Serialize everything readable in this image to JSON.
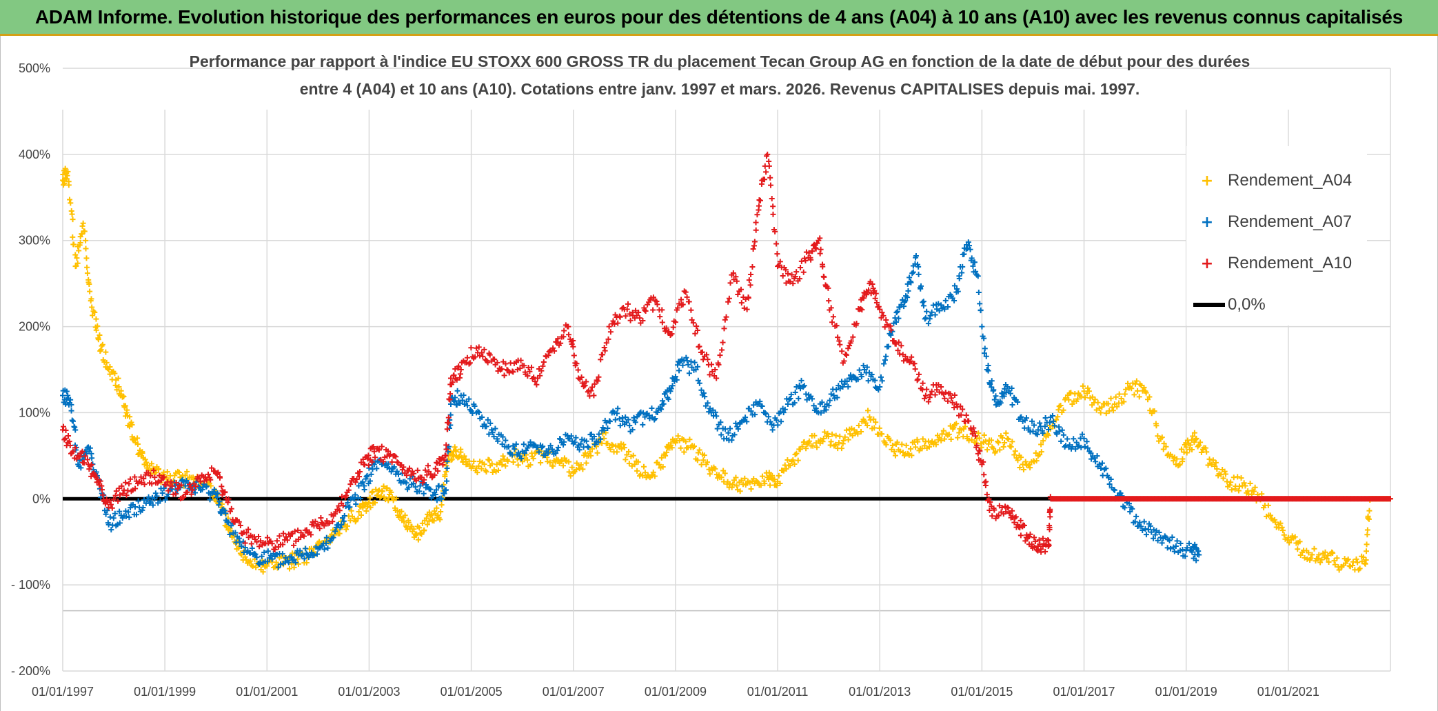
{
  "header": {
    "title": "ADAM Informe. Evolution historique des performances en euros pour des détentions de 4 ans (A04) à 10 ans (A10) avec les revenus connus capitalisés"
  },
  "chart_data": {
    "type": "scatter",
    "title_lines": [
      "Performance par rapport à l'indice EU STOXX 600 GROSS TR  du placement Tecan Group AG en fonction de la date de début pour des durées",
      "entre 4 (A04) et 10 ans (A10). Cotations entre janv. 1997 et mars. 2026. Revenus CAPITALISES depuis mai. 1997."
    ],
    "xlabel": "",
    "ylabel": "",
    "x_ticks": [
      "01/01/1997",
      "01/01/1999",
      "01/01/2001",
      "01/01/2003",
      "01/01/2005",
      "01/01/2007",
      "01/01/2009",
      "01/01/2011",
      "01/01/2013",
      "01/01/2015",
      "01/01/2017",
      "01/01/2019",
      "01/01/2021"
    ],
    "y_ticks": [
      "500%",
      "400%",
      "300%",
      "200%",
      "100%",
      "0%",
      "- 100%",
      "- 200%"
    ],
    "xlim": [
      "01/01/1997",
      "01/01/2023"
    ],
    "ylim": [
      -200,
      500
    ],
    "grid": true,
    "legend_position": "top-right",
    "series": [
      {
        "name": "Rendement_A04",
        "color": "#ffc000",
        "marker": "+",
        "points": [
          [
            1997.0,
            370
          ],
          [
            1997.1,
            380
          ],
          [
            1997.25,
            270
          ],
          [
            1997.4,
            320
          ],
          [
            1997.55,
            230
          ],
          [
            1997.7,
            185
          ],
          [
            1997.9,
            150
          ],
          [
            1998.1,
            130
          ],
          [
            1998.25,
            100
          ],
          [
            1998.4,
            70
          ],
          [
            1998.6,
            40
          ],
          [
            1998.8,
            30
          ],
          [
            1999.0,
            25
          ],
          [
            1999.3,
            25
          ],
          [
            1999.6,
            20
          ],
          [
            1999.9,
            15
          ],
          [
            2000.1,
            -10
          ],
          [
            2000.3,
            -40
          ],
          [
            2000.5,
            -65
          ],
          [
            2000.8,
            -75
          ],
          [
            2001.0,
            -78
          ],
          [
            2001.3,
            -75
          ],
          [
            2001.6,
            -70
          ],
          [
            2001.9,
            -62
          ],
          [
            2002.2,
            -50
          ],
          [
            2002.5,
            -30
          ],
          [
            2002.8,
            -15
          ],
          [
            2003.0,
            -5
          ],
          [
            2003.2,
            10
          ],
          [
            2003.4,
            5
          ],
          [
            2003.6,
            -15
          ],
          [
            2003.8,
            -35
          ],
          [
            2004.0,
            -40
          ],
          [
            2004.2,
            -20
          ],
          [
            2004.4,
            -15
          ],
          [
            2004.55,
            50
          ],
          [
            2004.7,
            55
          ],
          [
            2004.9,
            40
          ],
          [
            2005.2,
            35
          ],
          [
            2005.5,
            40
          ],
          [
            2005.8,
            50
          ],
          [
            2006.1,
            45
          ],
          [
            2006.4,
            50
          ],
          [
            2006.7,
            45
          ],
          [
            2007.0,
            30
          ],
          [
            2007.3,
            50
          ],
          [
            2007.6,
            70
          ],
          [
            2007.9,
            60
          ],
          [
            2008.2,
            40
          ],
          [
            2008.5,
            25
          ],
          [
            2008.8,
            50
          ],
          [
            2009.0,
            65
          ],
          [
            2009.3,
            60
          ],
          [
            2009.6,
            40
          ],
          [
            2009.9,
            25
          ],
          [
            2010.2,
            15
          ],
          [
            2010.5,
            20
          ],
          [
            2010.8,
            25
          ],
          [
            2011.0,
            20
          ],
          [
            2011.3,
            45
          ],
          [
            2011.6,
            65
          ],
          [
            2011.9,
            70
          ],
          [
            2012.2,
            65
          ],
          [
            2012.5,
            80
          ],
          [
            2012.8,
            95
          ],
          [
            2013.1,
            65
          ],
          [
            2013.4,
            55
          ],
          [
            2013.7,
            60
          ],
          [
            2014.0,
            65
          ],
          [
            2014.3,
            75
          ],
          [
            2014.6,
            80
          ],
          [
            2014.9,
            70
          ],
          [
            2015.2,
            60
          ],
          [
            2015.5,
            70
          ],
          [
            2015.8,
            40
          ],
          [
            2016.1,
            50
          ],
          [
            2016.4,
            90
          ],
          [
            2016.7,
            115
          ],
          [
            2017.0,
            125
          ],
          [
            2017.3,
            105
          ],
          [
            2017.6,
            110
          ],
          [
            2017.9,
            130
          ],
          [
            2018.2,
            125
          ],
          [
            2018.5,
            70
          ],
          [
            2018.8,
            40
          ],
          [
            2019.0,
            60
          ],
          [
            2019.2,
            70
          ],
          [
            2019.5,
            40
          ],
          [
            2019.8,
            20
          ],
          [
            2020.1,
            15
          ],
          [
            2020.4,
            5
          ],
          [
            2020.7,
            -25
          ],
          [
            2021.0,
            -45
          ],
          [
            2021.3,
            -60
          ],
          [
            2021.6,
            -65
          ],
          [
            2021.9,
            -72
          ],
          [
            2022.2,
            -78
          ],
          [
            2022.5,
            -75
          ],
          [
            2022.6,
            0
          ],
          [
            2023.0,
            0
          ]
        ]
      },
      {
        "name": "Rendement_A07",
        "color": "#0070c0",
        "marker": "+",
        "points": [
          [
            1997.0,
            120
          ],
          [
            1997.15,
            115
          ],
          [
            1997.3,
            40
          ],
          [
            1997.5,
            60
          ],
          [
            1997.7,
            20
          ],
          [
            1997.9,
            -30
          ],
          [
            1998.2,
            -20
          ],
          [
            1998.5,
            -10
          ],
          [
            1998.8,
            0
          ],
          [
            1999.1,
            10
          ],
          [
            1999.4,
            15
          ],
          [
            1999.7,
            10
          ],
          [
            2000.0,
            5
          ],
          [
            2000.2,
            -25
          ],
          [
            2000.5,
            -55
          ],
          [
            2000.8,
            -68
          ],
          [
            2001.1,
            -70
          ],
          [
            2001.4,
            -72
          ],
          [
            2001.7,
            -65
          ],
          [
            2002.0,
            -58
          ],
          [
            2002.3,
            -45
          ],
          [
            2002.6,
            -10
          ],
          [
            2002.9,
            15
          ],
          [
            2003.1,
            40
          ],
          [
            2003.4,
            35
          ],
          [
            2003.7,
            20
          ],
          [
            2004.0,
            15
          ],
          [
            2004.3,
            5
          ],
          [
            2004.5,
            10
          ],
          [
            2004.6,
            110
          ],
          [
            2004.8,
            120
          ],
          [
            2005.1,
            100
          ],
          [
            2005.4,
            80
          ],
          [
            2005.7,
            60
          ],
          [
            2006.0,
            55
          ],
          [
            2006.3,
            60
          ],
          [
            2006.6,
            55
          ],
          [
            2006.9,
            70
          ],
          [
            2007.2,
            60
          ],
          [
            2007.5,
            75
          ],
          [
            2007.8,
            100
          ],
          [
            2008.1,
            85
          ],
          [
            2008.4,
            95
          ],
          [
            2008.7,
            105
          ],
          [
            2008.9,
            125
          ],
          [
            2009.1,
            160
          ],
          [
            2009.4,
            150
          ],
          [
            2009.7,
            100
          ],
          [
            2010.0,
            70
          ],
          [
            2010.3,
            90
          ],
          [
            2010.6,
            110
          ],
          [
            2010.9,
            80
          ],
          [
            2011.2,
            110
          ],
          [
            2011.5,
            130
          ],
          [
            2011.8,
            100
          ],
          [
            2012.1,
            120
          ],
          [
            2012.4,
            140
          ],
          [
            2012.7,
            150
          ],
          [
            2013.0,
            130
          ],
          [
            2013.3,
            210
          ],
          [
            2013.5,
            230
          ],
          [
            2013.7,
            280
          ],
          [
            2013.9,
            210
          ],
          [
            2014.2,
            225
          ],
          [
            2014.5,
            240
          ],
          [
            2014.7,
            295
          ],
          [
            2014.9,
            260
          ],
          [
            2015.1,
            150
          ],
          [
            2015.3,
            110
          ],
          [
            2015.5,
            130
          ],
          [
            2015.8,
            90
          ],
          [
            2016.1,
            80
          ],
          [
            2016.4,
            90
          ],
          [
            2016.7,
            60
          ],
          [
            2017.0,
            70
          ],
          [
            2017.3,
            40
          ],
          [
            2017.6,
            10
          ],
          [
            2017.9,
            -15
          ],
          [
            2018.2,
            -35
          ],
          [
            2018.5,
            -45
          ],
          [
            2018.8,
            -55
          ],
          [
            2019.1,
            -60
          ],
          [
            2019.25,
            -65
          ]
        ]
      },
      {
        "name": "Rendement_A10",
        "color": "#e31a1c",
        "marker": "+",
        "points": [
          [
            1997.0,
            80
          ],
          [
            1997.2,
            55
          ],
          [
            1997.5,
            40
          ],
          [
            1997.7,
            20
          ],
          [
            1997.9,
            -10
          ],
          [
            1998.2,
            10
          ],
          [
            1998.5,
            20
          ],
          [
            1998.8,
            25
          ],
          [
            1999.1,
            15
          ],
          [
            1999.4,
            5
          ],
          [
            1999.7,
            20
          ],
          [
            2000.0,
            30
          ],
          [
            2000.2,
            0
          ],
          [
            2000.5,
            -40
          ],
          [
            2000.8,
            -50
          ],
          [
            2001.1,
            -52
          ],
          [
            2001.4,
            -48
          ],
          [
            2001.7,
            -42
          ],
          [
            2002.0,
            -30
          ],
          [
            2002.3,
            -20
          ],
          [
            2002.6,
            10
          ],
          [
            2002.9,
            40
          ],
          [
            2003.1,
            55
          ],
          [
            2003.4,
            50
          ],
          [
            2003.7,
            30
          ],
          [
            2004.0,
            25
          ],
          [
            2004.3,
            35
          ],
          [
            2004.5,
            50
          ],
          [
            2004.6,
            140
          ],
          [
            2004.8,
            150
          ],
          [
            2005.1,
            175
          ],
          [
            2005.4,
            160
          ],
          [
            2005.7,
            150
          ],
          [
            2006.0,
            155
          ],
          [
            2006.3,
            140
          ],
          [
            2006.6,
            175
          ],
          [
            2006.9,
            200
          ],
          [
            2007.1,
            140
          ],
          [
            2007.4,
            120
          ],
          [
            2007.7,
            200
          ],
          [
            2008.0,
            220
          ],
          [
            2008.3,
            210
          ],
          [
            2008.6,
            230
          ],
          [
            2008.9,
            190
          ],
          [
            2009.2,
            240
          ],
          [
            2009.5,
            170
          ],
          [
            2009.8,
            140
          ],
          [
            2010.1,
            260
          ],
          [
            2010.4,
            220
          ],
          [
            2010.6,
            330
          ],
          [
            2010.8,
            400
          ],
          [
            2011.0,
            270
          ],
          [
            2011.3,
            250
          ],
          [
            2011.6,
            280
          ],
          [
            2011.8,
            300
          ],
          [
            2012.0,
            230
          ],
          [
            2012.3,
            160
          ],
          [
            2012.6,
            220
          ],
          [
            2012.8,
            250
          ],
          [
            2013.0,
            220
          ],
          [
            2013.3,
            180
          ],
          [
            2013.6,
            160
          ],
          [
            2013.9,
            120
          ],
          [
            2014.2,
            130
          ],
          [
            2014.5,
            110
          ],
          [
            2014.8,
            80
          ],
          [
            2015.0,
            40
          ],
          [
            2015.2,
            -20
          ],
          [
            2015.5,
            -10
          ],
          [
            2015.7,
            -30
          ],
          [
            2015.9,
            -45
          ],
          [
            2016.1,
            -55
          ],
          [
            2016.3,
            -55
          ],
          [
            2016.35,
            0
          ],
          [
            2023.0,
            0
          ]
        ]
      },
      {
        "name": "0,0%",
        "color": "#000000",
        "marker": "line",
        "points": [
          [
            1997.0,
            0
          ],
          [
            2023.0,
            0
          ]
        ]
      }
    ]
  }
}
